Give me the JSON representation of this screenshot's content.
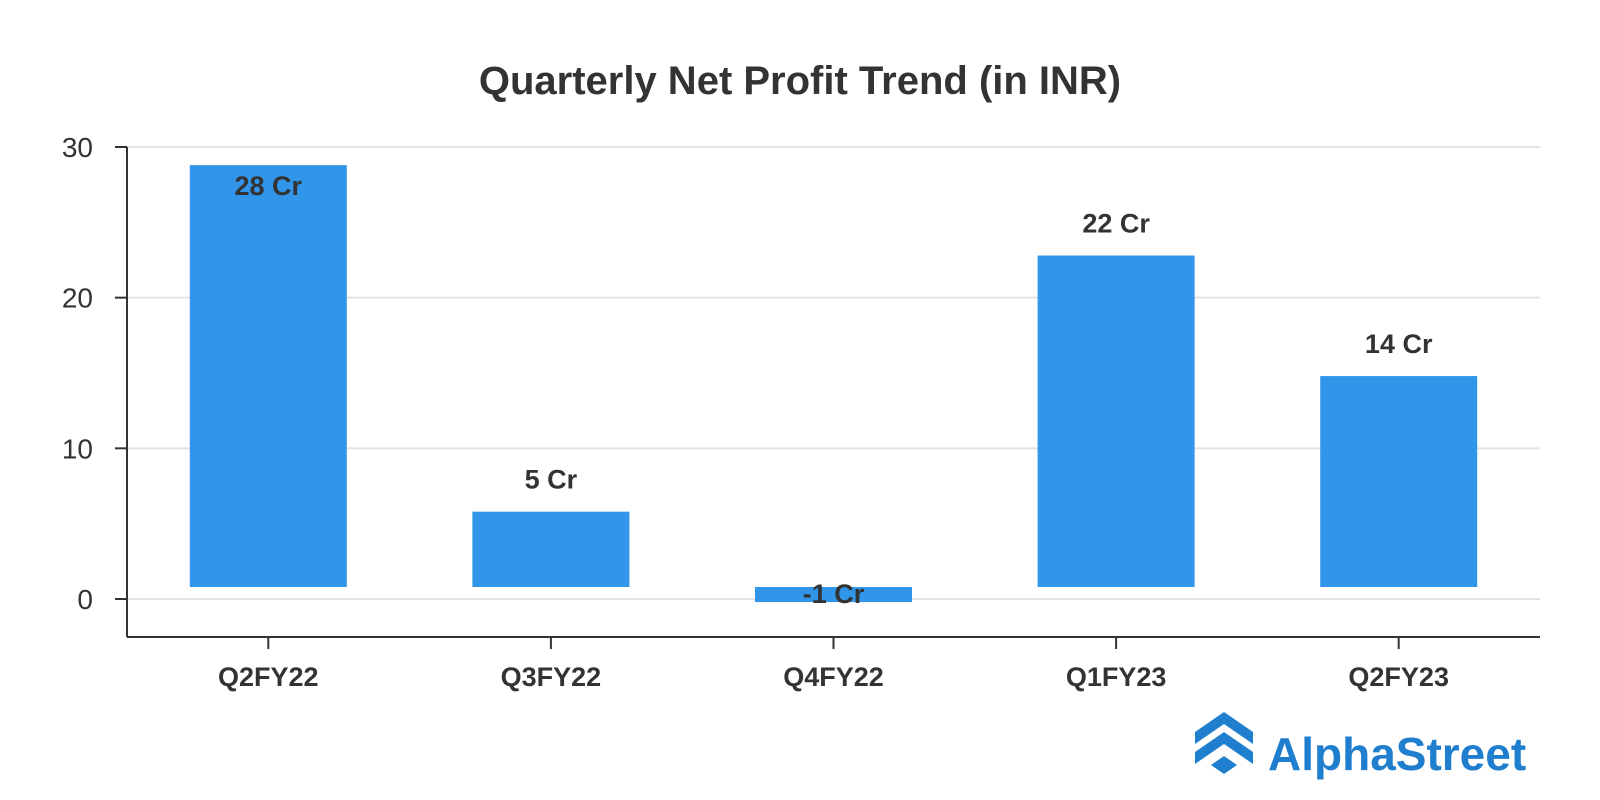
{
  "chart_data": {
    "type": "bar",
    "title": "Quarterly Net Profit Trend (in INR)",
    "xlabel": "",
    "ylabel": "",
    "categories": [
      "Q2FY22",
      "Q3FY22",
      "Q4FY22",
      "Q1FY23",
      "Q2FY23"
    ],
    "values": [
      28,
      5,
      -1,
      22,
      14
    ],
    "data_labels": [
      "28 Cr",
      "5 Cr",
      "-1 Cr",
      "22 Cr",
      "14 Cr"
    ],
    "ylim": [
      0,
      30
    ],
    "yticks": [
      0,
      10,
      20,
      30
    ],
    "ytick_labels": [
      "0",
      "10",
      "20",
      "30"
    ],
    "grid": true,
    "bar_color": "#3195ea",
    "grid_color": "#e3e3e3",
    "axis_color": "#333333",
    "text_color": "#333333"
  },
  "brand": {
    "name": "AlphaStreet",
    "color": "#1f7fce",
    "logo_icon": "chevron-stack-logo-icon"
  }
}
